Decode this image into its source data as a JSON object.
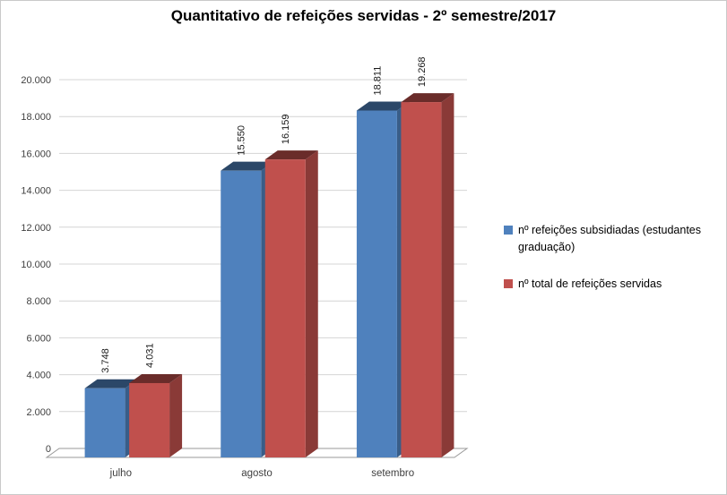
{
  "chart_data": {
    "type": "bar",
    "style": "3d-clustered-column",
    "title": "Quantitativo de refeições servidas - 2º semestre/2017",
    "categories": [
      "julho",
      "agosto",
      "setembro"
    ],
    "series": [
      {
        "name": "nº refeições subsidiadas (estudantes graduação)",
        "color": "#4F81BD",
        "values": [
          3748,
          15550,
          18811
        ],
        "labels": [
          "3.748",
          "15.550",
          "18.811"
        ]
      },
      {
        "name": "nº total de refeições servidas",
        "color": "#C0504D",
        "values": [
          4031,
          16159,
          19268
        ],
        "labels": [
          "4.031",
          "16.159",
          "19.268"
        ]
      }
    ],
    "ylim": [
      0,
      20000
    ],
    "ytick_step": 2000,
    "ytick_labels": [
      "0",
      "2.000",
      "4.000",
      "6.000",
      "8.000",
      "10.000",
      "12.000",
      "14.000",
      "16.000",
      "18.000",
      "20.000"
    ],
    "grid": true,
    "legend_position": "right",
    "colors": {
      "background": "#ffffff",
      "border": "#c9c9c9",
      "gridline": "#d4d4d4",
      "floor_outline": "#9a9a9a",
      "axis_text": "#3f3f3f",
      "data_label_text": "#191919"
    }
  }
}
